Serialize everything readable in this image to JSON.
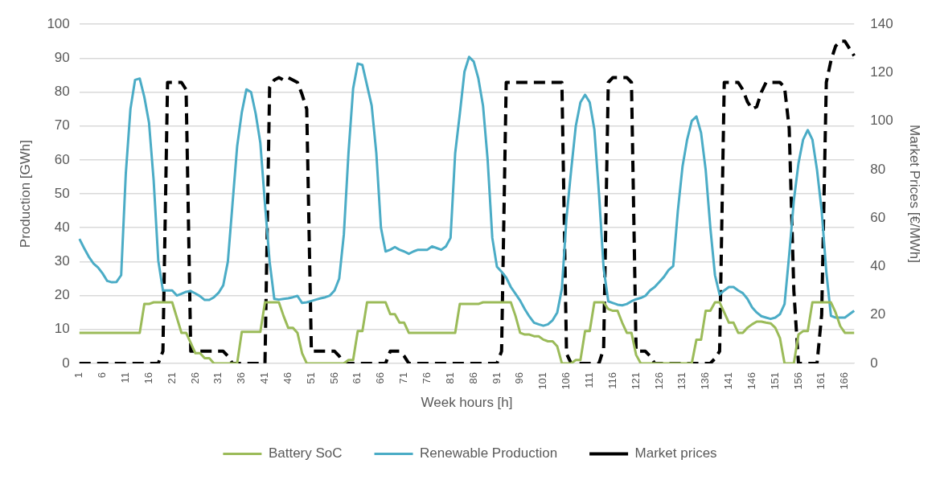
{
  "chart_data": {
    "type": "line",
    "xlabel": "Week hours [h]",
    "ylabel": "Production [GWh]",
    "y2label": "Market Prices [€/MWh]",
    "categories": [
      "1",
      null,
      null,
      null,
      null,
      "6",
      null,
      null,
      null,
      null,
      "11",
      null,
      null,
      null,
      null,
      "16",
      null,
      null,
      null,
      null,
      "21",
      null,
      null,
      null,
      null,
      "26",
      null,
      null,
      null,
      null,
      "31",
      null,
      null,
      null,
      null,
      "36",
      null,
      null,
      null,
      null,
      "41",
      null,
      null,
      null,
      null,
      "46",
      null,
      null,
      null,
      null,
      "51",
      null,
      null,
      null,
      null,
      "56",
      null,
      null,
      null,
      null,
      "61",
      null,
      null,
      null,
      null,
      "66",
      null,
      null,
      null,
      null,
      "71",
      null,
      null,
      null,
      null,
      "76",
      null,
      null,
      null,
      null,
      "81",
      null,
      null,
      null,
      null,
      "86",
      null,
      null,
      null,
      null,
      "91",
      null,
      null,
      null,
      null,
      "96",
      null,
      null,
      null,
      null,
      "101",
      null,
      null,
      null,
      null,
      "106",
      null,
      null,
      null,
      null,
      "111",
      null,
      null,
      null,
      null,
      "116",
      null,
      null,
      null,
      null,
      "121",
      null,
      null,
      null,
      null,
      "126",
      null,
      null,
      null,
      null,
      "131",
      null,
      null,
      null,
      null,
      "136",
      null,
      null,
      null,
      null,
      "141",
      null,
      null,
      null,
      null,
      "146",
      null,
      null,
      null,
      null,
      "151",
      null,
      null,
      null,
      null,
      "156",
      null,
      null,
      null,
      null,
      "161",
      null,
      null,
      null,
      null,
      "166",
      null,
      null
    ],
    "series": [
      {
        "name": "Battery SoC",
        "color": "#9bbb59",
        "values": [
          9,
          9,
          9,
          9,
          9,
          9,
          9,
          9,
          9,
          9,
          9,
          9,
          9,
          9,
          17.5,
          17.5,
          18,
          18,
          18,
          18,
          18,
          13.5,
          9,
          9,
          6,
          3,
          3,
          1.5,
          1.5,
          0,
          0,
          0,
          0,
          0,
          0,
          9.3,
          9.3,
          9.3,
          9.3,
          9.3,
          18,
          18,
          18,
          18,
          14,
          10.5,
          10.5,
          9,
          3,
          0,
          0,
          0,
          0,
          0,
          0,
          0,
          0,
          0,
          1,
          1,
          9.5,
          9.5,
          18,
          18,
          18,
          18,
          18,
          14.5,
          14.5,
          12,
          12,
          9,
          9,
          9,
          9,
          9,
          9,
          9,
          9,
          9,
          9,
          9,
          17.5,
          17.5,
          17.5,
          17.5,
          17.5,
          18,
          18,
          18,
          18,
          18,
          18,
          18,
          14,
          9,
          8.5,
          8.5,
          8,
          8,
          7,
          6.5,
          6.5,
          5,
          0,
          0,
          0,
          1,
          1,
          9.5,
          9.5,
          18,
          18,
          18,
          16,
          15.5,
          15.5,
          12,
          9,
          9,
          2.5,
          0,
          0,
          0,
          0,
          0,
          0,
          0,
          0,
          0,
          0,
          0,
          0,
          7,
          7,
          15.5,
          15.5,
          18,
          18,
          15,
          12,
          12,
          9,
          9,
          10.5,
          11.5,
          12.3,
          12.3,
          12,
          11.8,
          10.5,
          7.5,
          0,
          0,
          0,
          8.5,
          9.5,
          9.5,
          18,
          18,
          18,
          18,
          18,
          15,
          11,
          9,
          9,
          9
        ]
      },
      {
        "name": "Renewable Production",
        "color": "#4bacc6",
        "values": [
          36.7,
          34,
          31.5,
          29.5,
          28.3,
          26.5,
          24.3,
          23.9,
          24,
          26,
          56,
          75,
          83.6,
          84,
          78.5,
          71,
          54,
          30.3,
          21.5,
          21.5,
          21.5,
          20,
          20.5,
          21.1,
          21.3,
          20.6,
          19.8,
          18.7,
          18.7,
          19.5,
          20.8,
          23,
          30,
          47,
          64,
          74,
          80.8,
          80,
          73.6,
          65,
          47,
          30,
          19,
          18.8,
          19,
          19.2,
          19.5,
          19.9,
          17.8,
          18,
          18.4,
          18.8,
          19.2,
          19.5,
          20,
          21.5,
          25,
          38,
          62,
          81,
          88.4,
          88,
          82,
          76,
          62,
          40,
          33,
          33.5,
          34.3,
          33.5,
          33,
          32.3,
          33,
          33.5,
          33.5,
          33.5,
          34.5,
          34,
          33.5,
          34.5,
          37,
          62,
          73.6,
          86,
          90.4,
          89,
          84,
          76,
          60,
          37,
          28.5,
          27,
          25.3,
          22.5,
          20.5,
          18.5,
          16,
          13.8,
          12,
          11.5,
          11.1,
          11.5,
          12.7,
          15,
          22,
          43,
          57,
          70,
          77,
          79.2,
          77,
          69,
          50,
          28,
          18.3,
          17.8,
          17.3,
          17.1,
          17.5,
          18.3,
          18.9,
          19.3,
          19.9,
          21.5,
          22.5,
          24,
          25.5,
          27.5,
          28.7,
          45,
          58,
          66,
          71.5,
          72.8,
          68,
          57,
          40,
          26,
          20.3,
          21.5,
          22.5,
          22.5,
          21.5,
          20.7,
          19,
          16.5,
          15,
          13.9,
          13.5,
          13.1,
          13.5,
          14.5,
          17.5,
          32,
          48,
          59,
          66,
          68.8,
          66,
          57,
          45,
          27,
          14,
          13.5,
          13.5,
          13.5,
          14.5,
          15.5
        ]
      },
      {
        "name": "Market prices",
        "color": "#000000",
        "axis": "y2",
        "line_style": "dashed",
        "values": [
          0,
          0,
          0,
          0,
          0,
          0,
          0,
          0,
          0,
          0,
          0,
          0,
          0,
          0,
          0,
          0,
          0,
          0,
          5,
          116,
          116,
          116,
          116,
          113,
          5,
          5,
          5,
          5,
          5,
          5,
          5,
          5,
          3,
          0,
          0,
          0,
          0,
          0,
          0,
          0,
          0,
          114,
          117,
          118,
          117,
          118,
          117,
          116,
          111,
          105,
          5,
          5,
          5,
          5,
          5,
          5,
          3,
          0,
          0,
          0,
          0,
          0,
          0,
          0,
          0,
          0,
          0,
          5,
          5,
          5,
          3,
          0,
          0,
          0,
          0,
          0,
          0,
          0,
          0,
          0,
          0,
          0,
          0,
          0,
          0,
          0,
          0,
          0,
          0,
          0,
          0,
          5,
          116,
          116,
          116,
          116,
          116,
          116,
          116,
          116,
          116,
          116,
          116,
          116,
          116,
          4,
          0,
          0,
          0,
          0,
          0,
          0,
          0,
          6,
          116,
          118,
          118,
          118,
          118,
          116,
          5,
          5,
          5,
          3,
          0,
          0,
          0,
          0,
          0,
          0,
          0,
          0,
          0,
          0,
          0,
          0,
          0,
          2,
          5,
          116,
          116,
          116,
          116,
          113,
          108,
          105,
          106,
          112,
          116,
          116,
          116,
          116,
          114,
          97,
          30,
          0,
          0,
          0,
          0,
          0,
          20,
          116,
          125,
          131,
          133,
          133,
          130,
          127
        ]
      }
    ],
    "ylim": [
      0,
      100
    ],
    "yticks": [
      0,
      10,
      20,
      30,
      40,
      50,
      60,
      70,
      80,
      90,
      100
    ],
    "y2lim": [
      0,
      140
    ],
    "y2ticks": [
      0,
      20,
      40,
      60,
      80,
      100,
      120,
      140
    ],
    "grid": "y",
    "legend": "bottom",
    "marker": "none",
    "line_style": "solid"
  }
}
